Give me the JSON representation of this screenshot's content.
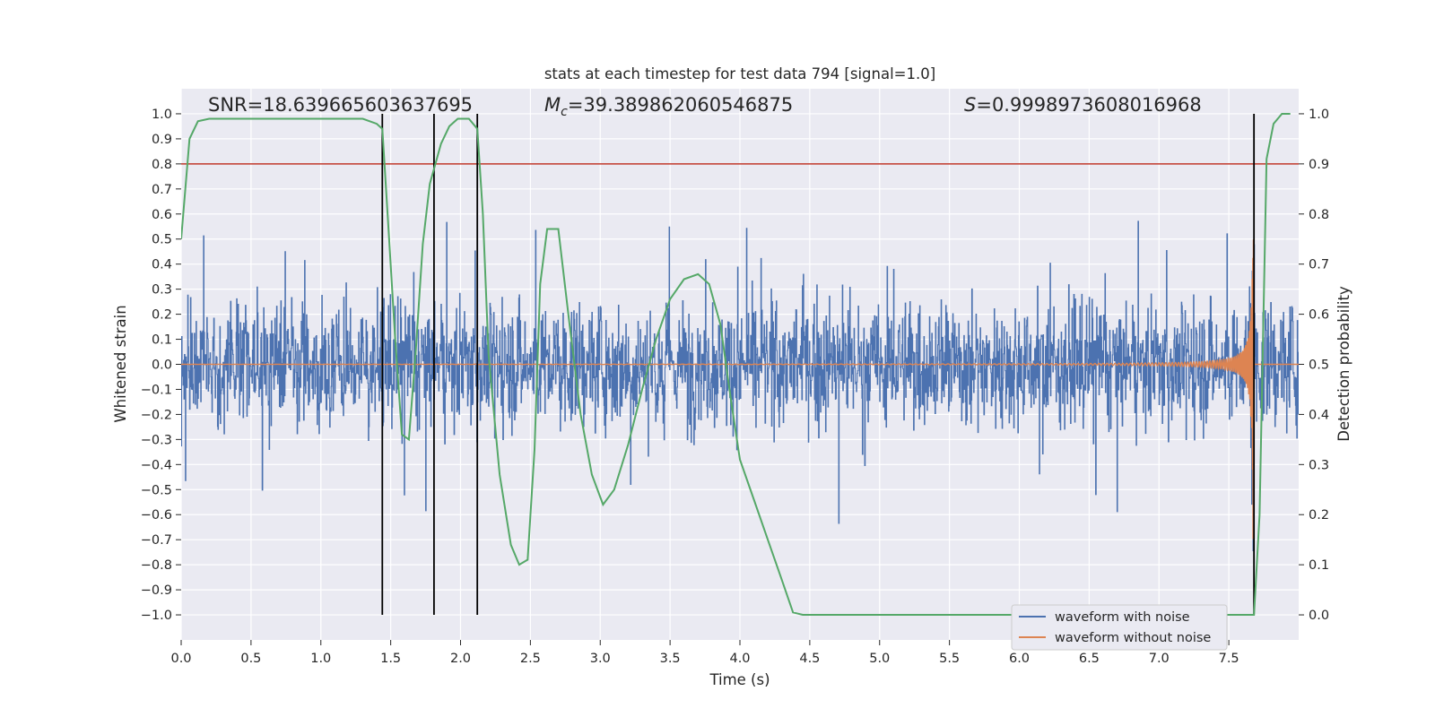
{
  "chart_data": {
    "type": "line",
    "title": "stats at each timestep for test data 794 [signal=1.0]",
    "xlabel": "Time (s)",
    "ylabel": "Whitened strain",
    "y2label": "Detection probability",
    "xlim": [
      0.0,
      8.0
    ],
    "ylim": [
      -1.1,
      1.1
    ],
    "y2lim": [
      -0.05,
      1.05
    ],
    "xticks": [
      "0.0",
      "0.5",
      "1.0",
      "1.5",
      "2.0",
      "2.5",
      "3.0",
      "3.5",
      "4.0",
      "4.5",
      "5.0",
      "5.5",
      "6.0",
      "6.5",
      "7.0",
      "7.5"
    ],
    "yticks": [
      "1.0",
      "0.9",
      "0.8",
      "0.7",
      "0.6",
      "0.5",
      "0.4",
      "0.3",
      "0.2",
      "0.1",
      "0.0",
      "−0.1",
      "−0.2",
      "−0.3",
      "−0.4",
      "−0.5",
      "−0.6",
      "−0.7",
      "−0.8",
      "−0.9",
      "−1.0"
    ],
    "y2ticks": [
      "1.0",
      "0.9",
      "0.8",
      "0.7",
      "0.6",
      "0.5",
      "0.4",
      "0.3",
      "0.2",
      "0.1",
      "0.0"
    ],
    "annotations": {
      "snr": "SNR=18.639665603637695",
      "mc_label": "M",
      "mc_sub": "c",
      "mc_value": "=39.389862060546875",
      "s_label": "S",
      "s_value": "=0.9998973608016968"
    },
    "threshold_line": {
      "y2": 0.9,
      "color": "#c0392b"
    },
    "vertical_lines_x": [
      1.44,
      1.81,
      2.12,
      7.68
    ],
    "legend": {
      "placement": "bottom-right",
      "entries": [
        "waveform with noise",
        "waveform without noise"
      ]
    },
    "series": [
      {
        "name": "Detection probability",
        "axis": "y2",
        "color": "#55a868",
        "x": [
          0.0,
          0.06,
          0.12,
          0.2,
          0.5,
          1.0,
          1.3,
          1.4,
          1.44,
          1.48,
          1.53,
          1.58,
          1.63,
          1.68,
          1.73,
          1.78,
          1.81,
          1.86,
          1.92,
          1.98,
          2.06,
          2.12,
          2.16,
          2.2,
          2.28,
          2.36,
          2.42,
          2.48,
          2.53,
          2.57,
          2.62,
          2.7,
          2.78,
          2.86,
          2.94,
          3.02,
          3.1,
          3.2,
          3.3,
          3.4,
          3.5,
          3.6,
          3.7,
          3.78,
          3.86,
          3.94,
          4.0,
          4.1,
          4.2,
          4.3,
          4.38,
          4.45,
          4.55,
          5.0,
          6.0,
          7.0,
          7.6,
          7.65,
          7.68,
          7.72,
          7.77,
          7.82,
          7.88,
          7.94
        ],
        "y": [
          0.75,
          0.95,
          0.985,
          0.99,
          0.99,
          0.99,
          0.99,
          0.98,
          0.97,
          0.79,
          0.56,
          0.36,
          0.35,
          0.53,
          0.74,
          0.86,
          0.89,
          0.94,
          0.975,
          0.99,
          0.99,
          0.97,
          0.8,
          0.52,
          0.28,
          0.14,
          0.1,
          0.11,
          0.33,
          0.66,
          0.77,
          0.77,
          0.58,
          0.4,
          0.28,
          0.22,
          0.25,
          0.34,
          0.45,
          0.55,
          0.63,
          0.67,
          0.68,
          0.66,
          0.58,
          0.42,
          0.31,
          0.23,
          0.15,
          0.07,
          0.005,
          0.0,
          0.0,
          0.0,
          0.0,
          0.0,
          0.0,
          0.0,
          0.0,
          0.2,
          0.91,
          0.98,
          1.0,
          1.0
        ]
      }
    ]
  }
}
